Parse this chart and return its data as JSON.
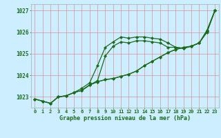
{
  "xlabel": "Graphe pression niveau de la mer (hPa)",
  "xlim": [
    -0.5,
    23.5
  ],
  "ylim": [
    1022.5,
    1027.3
  ],
  "yticks": [
    1023,
    1024,
    1025,
    1026,
    1027
  ],
  "xticks": [
    0,
    1,
    2,
    3,
    4,
    5,
    6,
    7,
    8,
    9,
    10,
    11,
    12,
    13,
    14,
    15,
    16,
    17,
    18,
    19,
    20,
    21,
    22,
    23
  ],
  "background_color": "#cceeff",
  "grid_color": "#dd8888",
  "line_color": "#1a6b1a",
  "line1_x": [
    0,
    1,
    2,
    3,
    4,
    5,
    6,
    7,
    8,
    9,
    10,
    11,
    12,
    13,
    14,
    15,
    16,
    17,
    18,
    19,
    20,
    21,
    22,
    23
  ],
  "line1_y": [
    1022.9,
    1022.8,
    1022.7,
    1023.0,
    1023.05,
    1023.2,
    1023.4,
    1023.65,
    1024.45,
    1025.3,
    1025.55,
    1025.78,
    1025.72,
    1025.78,
    1025.78,
    1025.72,
    1025.68,
    1025.5,
    1025.3,
    1025.25,
    1025.35,
    1025.5,
    1026.05,
    1027.0
  ],
  "line2_x": [
    0,
    1,
    2,
    3,
    4,
    5,
    6,
    7,
    8,
    9,
    10,
    11,
    12,
    13,
    14,
    15,
    16,
    17,
    18,
    19,
    20,
    21,
    22,
    23
  ],
  "line2_y": [
    1022.9,
    1022.8,
    1022.7,
    1023.0,
    1023.05,
    1023.2,
    1023.3,
    1023.55,
    1023.7,
    1023.8,
    1023.85,
    1023.95,
    1024.05,
    1024.2,
    1024.45,
    1024.65,
    1024.85,
    1025.05,
    1025.2,
    1025.3,
    1025.35,
    1025.5,
    1026.0,
    1027.0
  ],
  "line3_x": [
    0,
    1,
    2,
    3,
    4,
    5,
    6,
    7,
    8,
    9,
    10,
    11,
    12,
    13,
    14,
    15,
    16,
    17,
    18,
    19,
    20,
    21,
    22,
    23
  ],
  "line3_y": [
    1022.9,
    1022.8,
    1022.7,
    1023.0,
    1023.05,
    1023.2,
    1023.3,
    1023.55,
    1023.7,
    1023.8,
    1023.85,
    1023.95,
    1024.05,
    1024.2,
    1024.45,
    1024.65,
    1024.85,
    1025.05,
    1025.2,
    1025.28,
    1025.35,
    1025.5,
    1026.05,
    1027.0
  ],
  "line4_x": [
    6,
    7,
    8,
    9,
    10,
    11,
    12,
    13,
    14,
    15,
    16,
    17,
    18,
    19,
    20,
    21,
    22,
    23
  ],
  "line4_y": [
    1023.3,
    1023.55,
    1023.75,
    1024.9,
    1025.35,
    1025.55,
    1025.5,
    1025.6,
    1025.6,
    1025.55,
    1025.5,
    1025.3,
    1025.3,
    1025.25,
    1025.35,
    1025.5,
    1026.1,
    1027.0
  ]
}
